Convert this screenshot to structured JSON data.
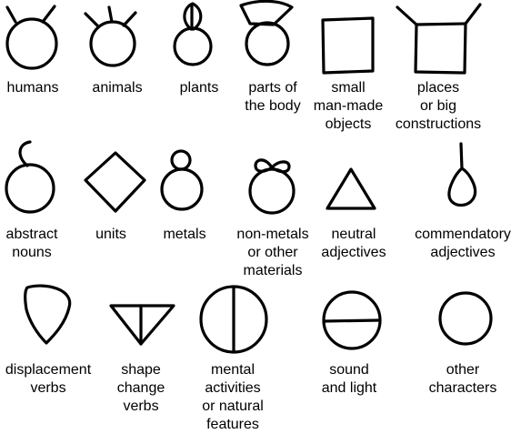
{
  "symbols": [
    {
      "icon": "circle-with-two-antennae-icon",
      "label": [
        "humans"
      ]
    },
    {
      "icon": "circle-with-three-antennae-icon",
      "label": [
        "animals"
      ]
    },
    {
      "icon": "circle-with-leaf-icon",
      "label": [
        "plants"
      ]
    },
    {
      "icon": "circle-with-fan-top-icon",
      "label": [
        "parts of",
        "the body"
      ]
    },
    {
      "icon": "square-icon",
      "label": [
        "small",
        "man-made",
        "objects"
      ]
    },
    {
      "icon": "square-with-antennae-icon",
      "label": [
        "places",
        "or big",
        "constructions"
      ]
    },
    {
      "icon": "circle-with-hook-icon",
      "label": [
        "abstract",
        "nouns"
      ]
    },
    {
      "icon": "diamond-icon",
      "label": [
        "units"
      ]
    },
    {
      "icon": "circle-with-small-loop-icon",
      "label": [
        "metals"
      ]
    },
    {
      "icon": "circle-with-infinity-icon",
      "label": [
        "non-metals",
        "or other",
        "materials"
      ]
    },
    {
      "icon": "triangle-icon",
      "label": [
        "neutral",
        "adjectives"
      ]
    },
    {
      "icon": "drop-with-stem-icon",
      "label": [
        "commendatory",
        "adjectives"
      ]
    },
    {
      "icon": "inverted-drop-icon",
      "label": [
        "displacement",
        "verbs"
      ]
    },
    {
      "icon": "inverted-triangle-split-icon",
      "label": [
        "shape",
        "change",
        "verbs"
      ]
    },
    {
      "icon": "circle-vertical-split-icon",
      "label": [
        "mental",
        "activities",
        "or natural",
        "features"
      ]
    },
    {
      "icon": "circle-horizontal-split-icon",
      "label": [
        "sound",
        "and light"
      ]
    },
    {
      "icon": "plain-circle-icon",
      "label": [
        "other",
        "characters"
      ]
    }
  ]
}
